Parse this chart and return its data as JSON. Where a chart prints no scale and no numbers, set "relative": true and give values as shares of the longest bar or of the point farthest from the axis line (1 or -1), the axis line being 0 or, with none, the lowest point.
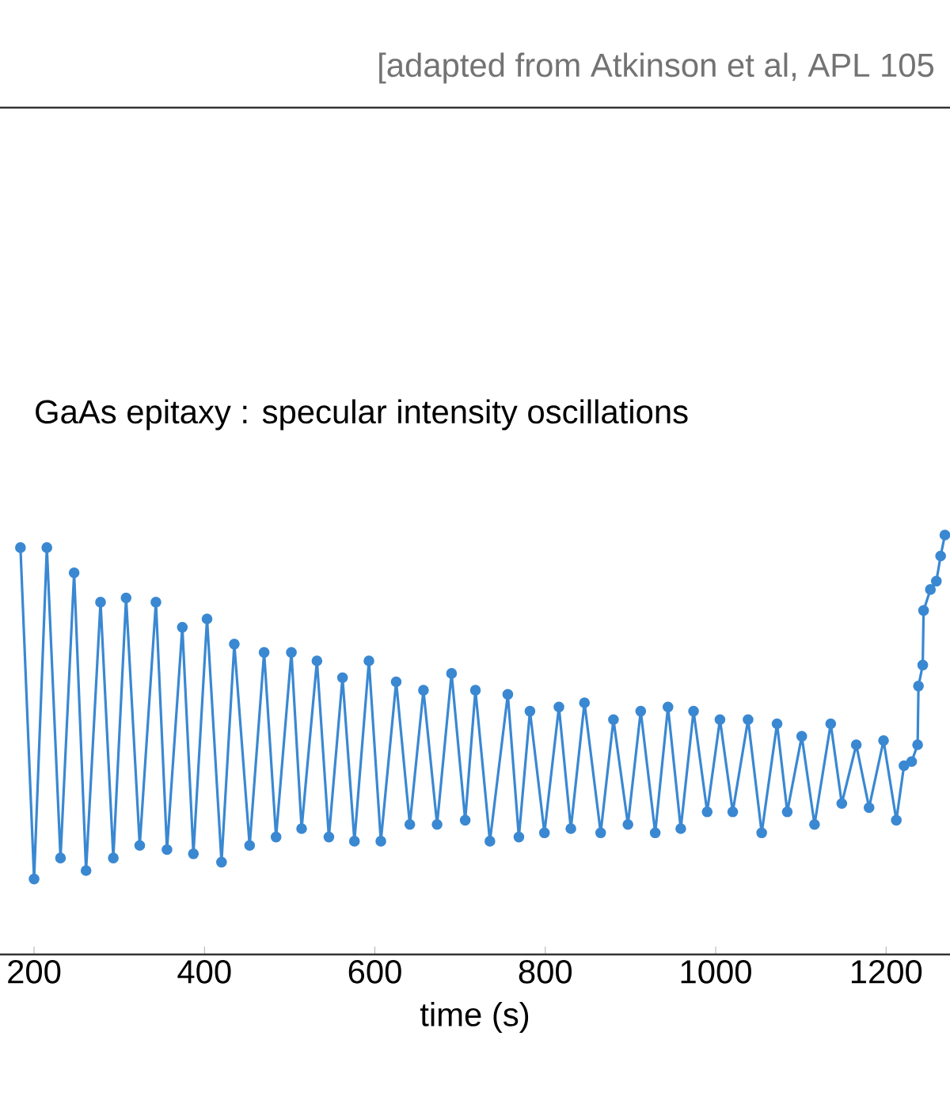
{
  "chart_data": {
    "type": "line",
    "title": "GaAs epitaxy : specular intensity oscillations",
    "xlabel": "time (s)",
    "annotations": [
      "[adapted from Atkinson et al, APL 105"
    ],
    "relative": true,
    "tick_labels": "x",
    "marker": "circle",
    "line_style": "solid",
    "color": "#3a88d2",
    "xlim": [
      160,
      1275
    ],
    "xticks": [
      200,
      400,
      600,
      800,
      1000,
      1200
    ],
    "x": [
      184,
      200,
      215,
      231,
      247,
      261,
      278,
      293,
      308,
      324,
      343,
      356,
      374,
      387,
      403,
      420,
      435,
      453,
      470,
      484,
      502,
      514,
      532,
      546,
      562,
      576,
      593,
      607,
      625,
      641,
      657,
      673,
      690,
      706,
      718,
      735,
      756,
      769,
      782,
      799,
      816,
      830,
      846,
      865,
      880,
      897,
      912,
      929,
      944,
      959,
      974,
      990,
      1005,
      1020,
      1038,
      1054,
      1072,
      1084,
      1101,
      1116,
      1135,
      1148,
      1165,
      1180,
      1197,
      1212,
      1221,
      1230,
      1237,
      1238,
      1243,
      1244,
      1252,
      1259,
      1264,
      1269
    ],
    "values": [
      0.97,
      0.18,
      0.97,
      0.23,
      0.91,
      0.2,
      0.84,
      0.23,
      0.85,
      0.26,
      0.84,
      0.25,
      0.78,
      0.24,
      0.8,
      0.22,
      0.74,
      0.26,
      0.72,
      0.28,
      0.72,
      0.3,
      0.7,
      0.28,
      0.66,
      0.27,
      0.7,
      0.27,
      0.65,
      0.31,
      0.63,
      0.31,
      0.67,
      0.32,
      0.63,
      0.27,
      0.62,
      0.28,
      0.58,
      0.29,
      0.59,
      0.3,
      0.6,
      0.29,
      0.56,
      0.31,
      0.58,
      0.29,
      0.59,
      0.3,
      0.58,
      0.34,
      0.56,
      0.34,
      0.56,
      0.29,
      0.55,
      0.34,
      0.52,
      0.31,
      0.55,
      0.36,
      0.5,
      0.35,
      0.51,
      0.32,
      0.45,
      0.46,
      0.5,
      0.64,
      0.69,
      0.82,
      0.87,
      0.89,
      0.95,
      1
    ]
  }
}
